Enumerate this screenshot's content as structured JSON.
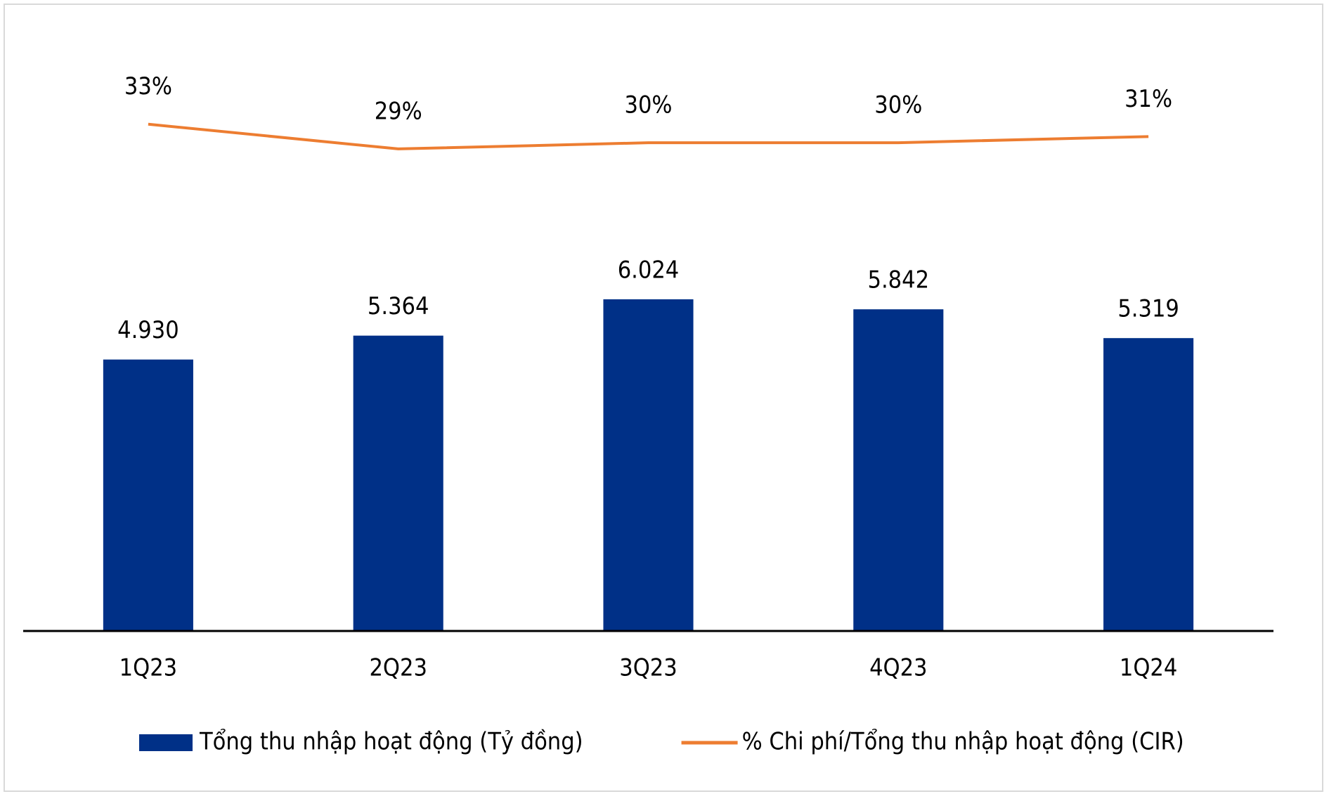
{
  "chart_data": {
    "type": "bar-line",
    "categories": [
      "1Q23",
      "2Q23",
      "3Q23",
      "4Q23",
      "1Q24"
    ],
    "series": [
      {
        "name": "Tổng thu nhập hoạt động (Tỷ đồng)",
        "type": "bar",
        "color": "#003087",
        "values": [
          4930,
          5364,
          6024,
          5842,
          5319
        ],
        "value_labels": [
          "4.930",
          "5.364",
          "6.024",
          "5.842",
          "5.319"
        ]
      },
      {
        "name": "% Chi phí/Tổng thu nhập hoạt động (CIR)",
        "type": "line",
        "axis": "y2",
        "color": "#ed7d31",
        "values": [
          33,
          29,
          30,
          30,
          31
        ],
        "value_labels": [
          "33%",
          "29%",
          "30%",
          "30%",
          "31%"
        ]
      }
    ],
    "ylim": [
      0,
      11000
    ],
    "y2lim": [
      -49,
      49
    ],
    "legend": "bottom"
  }
}
